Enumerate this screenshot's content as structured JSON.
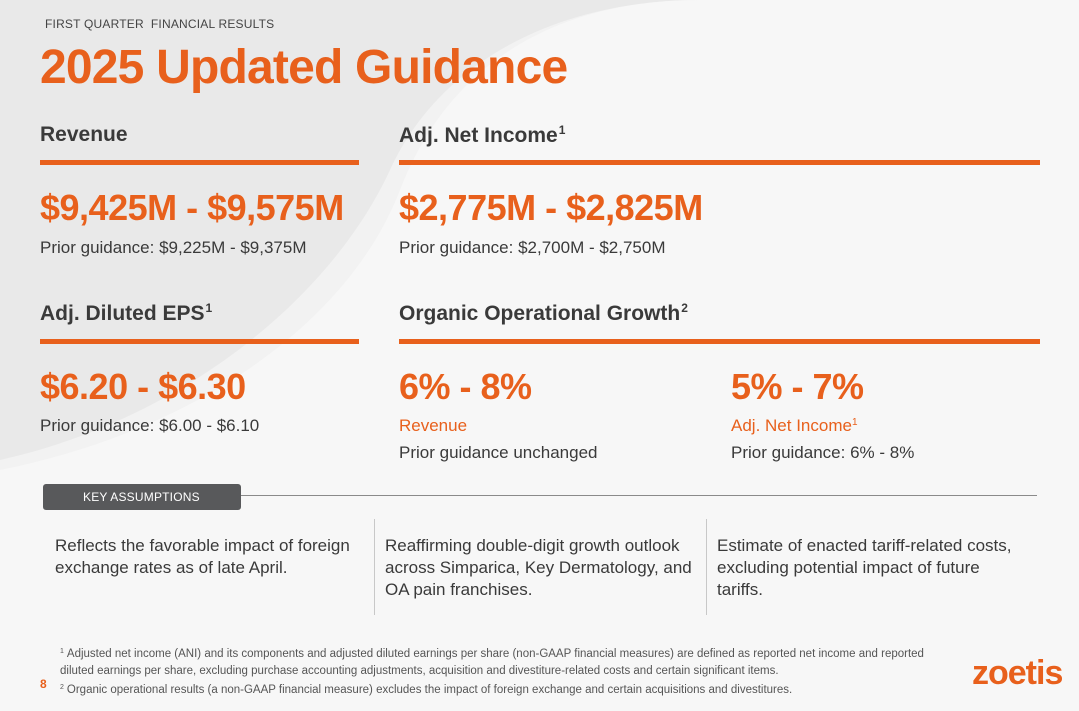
{
  "header": {
    "kicker": "FIRST QUARTER  FINANCIAL RESULTS",
    "title": "2025 Updated Guidance"
  },
  "revenue": {
    "heading": "Revenue",
    "range": "$9,425M - $9,575M",
    "prior": "Prior guidance: $9,225M - $9,375M"
  },
  "adj_net_income": {
    "heading": "Adj. Net Income",
    "note": "1",
    "range": "$2,775M - $2,825M",
    "prior": "Prior guidance: $2,700M - $2,750M"
  },
  "adj_eps": {
    "heading": "Adj. Diluted EPS",
    "note": "1",
    "range": "$6.20 - $6.30",
    "prior": "Prior guidance: $6.00 - $6.10"
  },
  "organic_growth": {
    "heading": "Organic Operational Growth",
    "note": "2",
    "revenue": {
      "range": "6% - 8%",
      "label": "Revenue",
      "prior": "Prior guidance unchanged"
    },
    "net_income": {
      "range": "5% - 7%",
      "label": "Adj. Net Income",
      "note": "1",
      "prior": "Prior guidance: 6% - 8%"
    }
  },
  "key_assumptions": {
    "label": "KEY ASSUMPTIONS",
    "items": [
      "Reflects the favorable impact of foreign exchange rates as of late April.",
      "Reaffirming double-digit growth outlook across Simparica, Key Dermatology, and OA pain franchises.",
      "Estimate of enacted tariff-related costs, excluding potential impact of future tariffs."
    ]
  },
  "footnotes": [
    {
      "marker": "1",
      "text": "Adjusted net income (ANI) and its components and adjusted diluted earnings per share (non-GAAP financial measures) are defined as reported net income and reported diluted earnings per share, excluding purchase accounting adjustments, acquisition and divestiture-related costs and certain significant items."
    },
    {
      "marker": "2",
      "text": "Organic operational results (a non-GAAP financial measure) excludes the impact of foreign exchange and certain acquisitions and divestitures."
    }
  ],
  "page_number": "8",
  "logo": "zoetis",
  "colors": {
    "accent": "#e8601c",
    "text": "#3a3a3a",
    "pill": "#58595b",
    "background": "#f2f2f2"
  }
}
